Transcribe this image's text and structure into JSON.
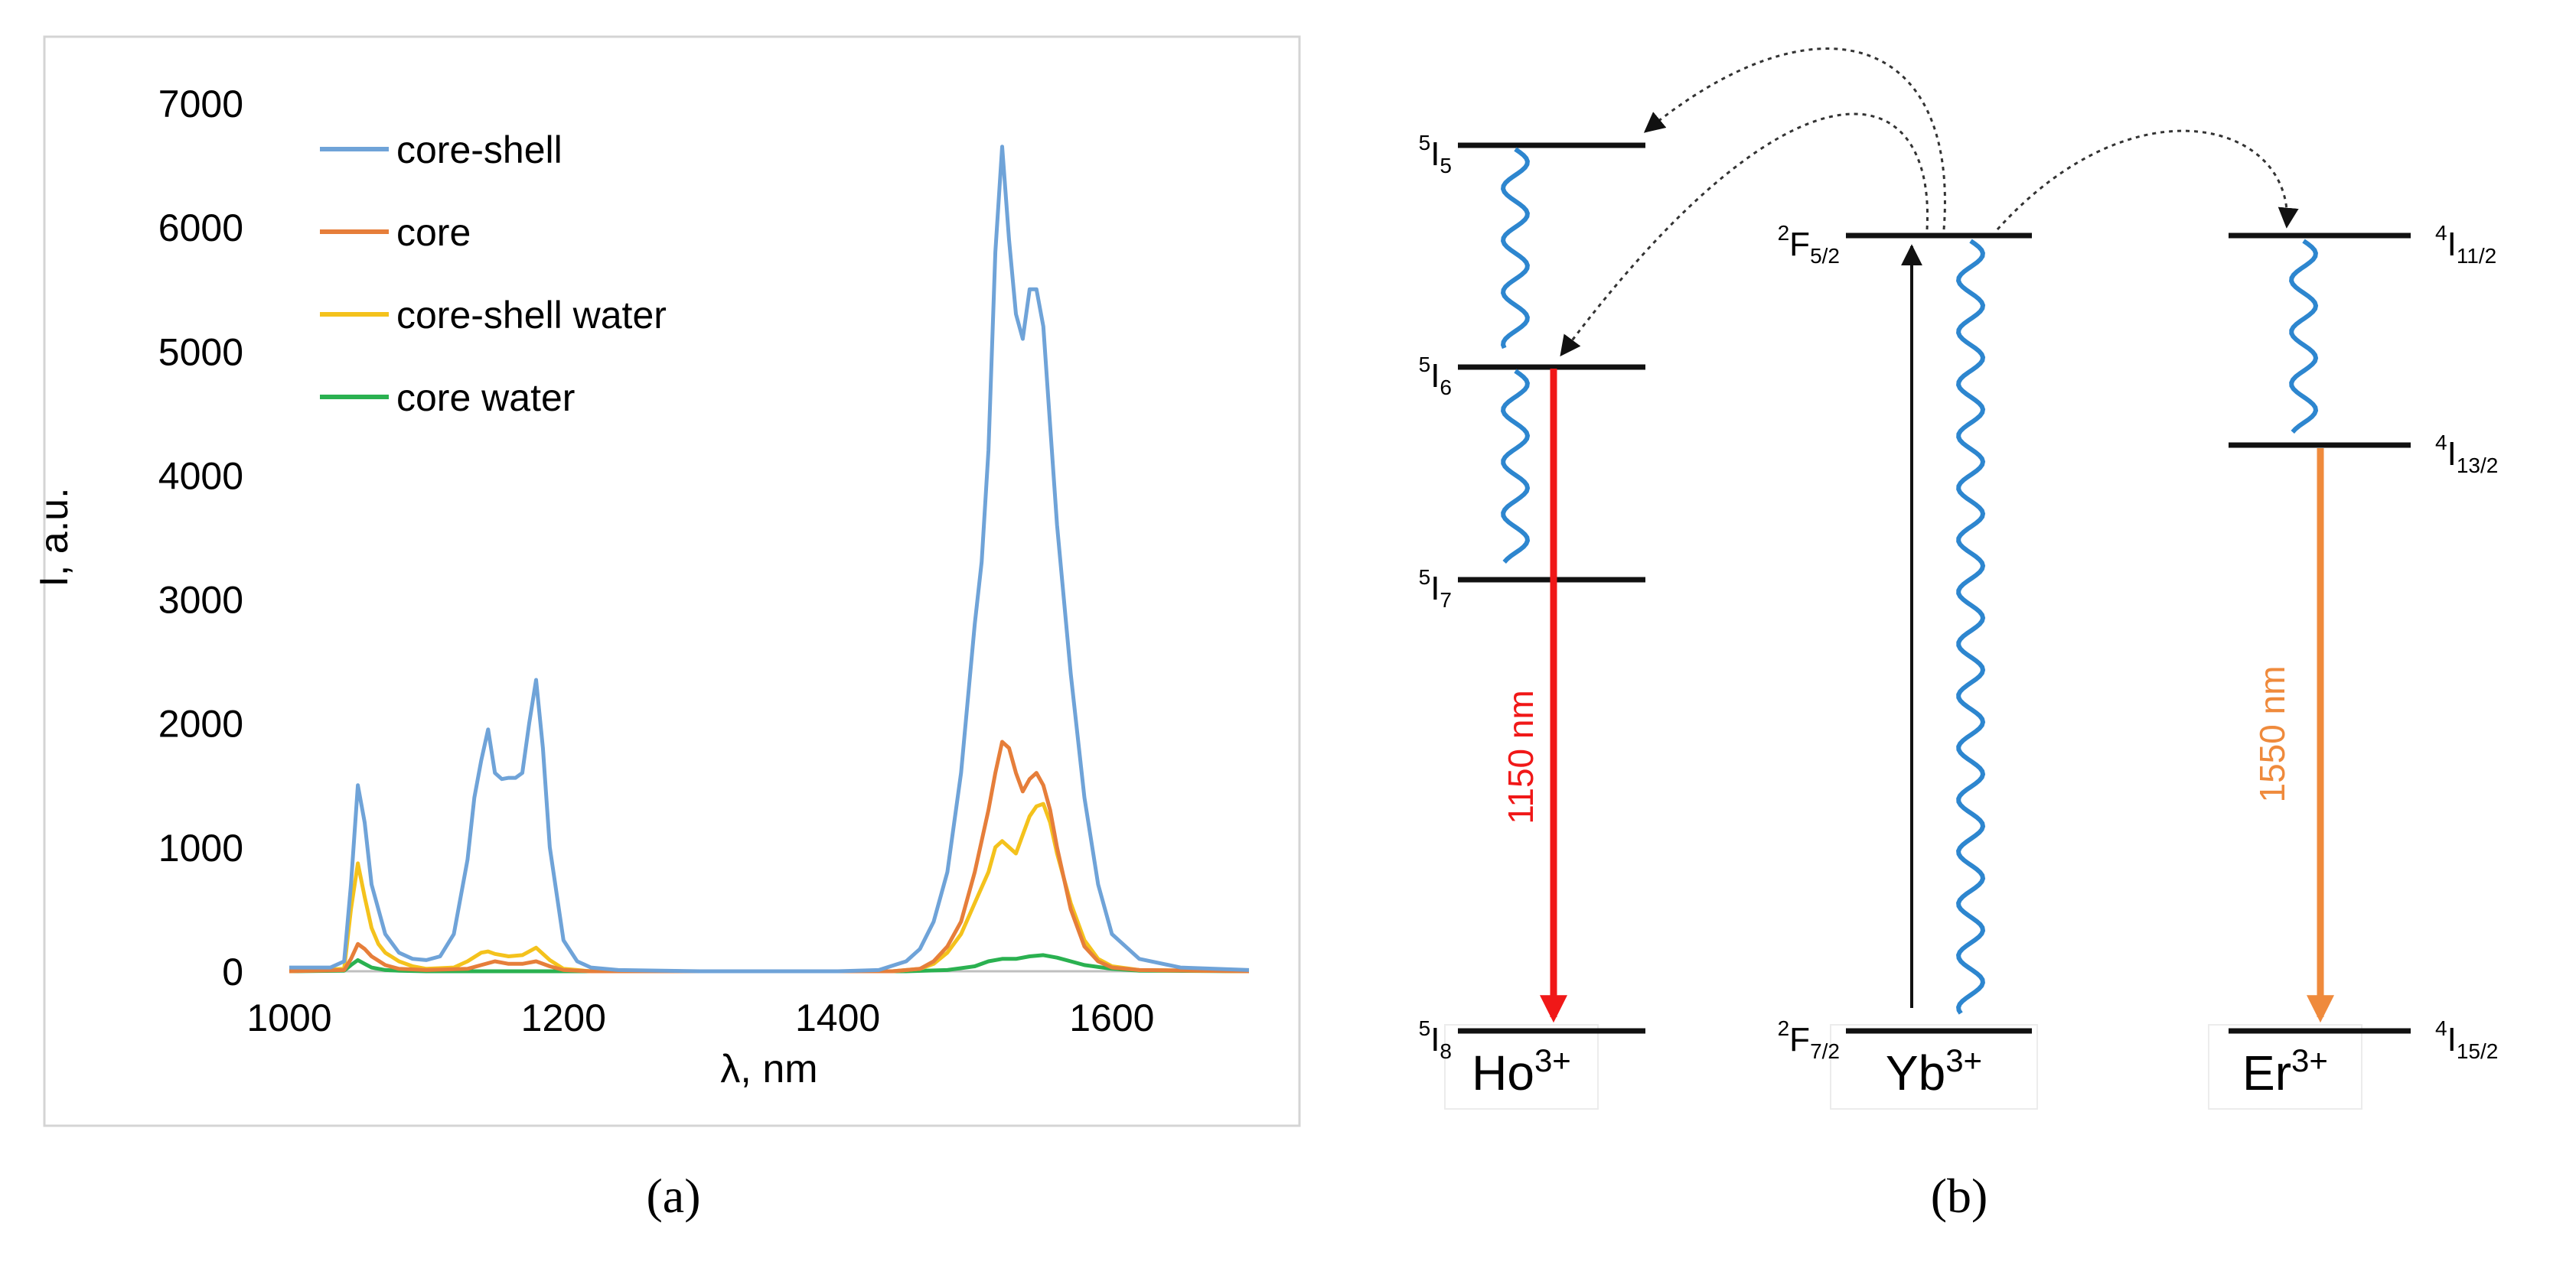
{
  "chart_data": {
    "type": "line",
    "xlabel": "λ, nm",
    "ylabel": "I, a.u.",
    "xlim": [
      1000,
      1700
    ],
    "ylim": [
      0,
      7000
    ],
    "xticks": [
      1000,
      1200,
      1400,
      1600
    ],
    "yticks": [
      0,
      1000,
      2000,
      3000,
      4000,
      5000,
      6000,
      7000
    ],
    "legend": "top-left",
    "grid": false,
    "series": [
      {
        "name": "core-shell",
        "color": "#6fa3d8",
        "x": [
          1000,
          1030,
          1040,
          1045,
          1050,
          1055,
          1060,
          1070,
          1080,
          1090,
          1100,
          1110,
          1120,
          1130,
          1135,
          1140,
          1145,
          1150,
          1155,
          1160,
          1165,
          1170,
          1175,
          1180,
          1185,
          1190,
          1200,
          1210,
          1220,
          1240,
          1300,
          1400,
          1430,
          1450,
          1460,
          1470,
          1480,
          1490,
          1500,
          1505,
          1510,
          1515,
          1520,
          1525,
          1530,
          1535,
          1540,
          1545,
          1550,
          1555,
          1560,
          1570,
          1580,
          1590,
          1600,
          1620,
          1650,
          1700
        ],
        "y": [
          30,
          30,
          80,
          700,
          1500,
          1200,
          700,
          300,
          150,
          100,
          90,
          120,
          300,
          900,
          1400,
          1700,
          1950,
          1600,
          1550,
          1560,
          1560,
          1600,
          2000,
          2350,
          1800,
          1000,
          250,
          80,
          30,
          10,
          0,
          0,
          10,
          80,
          180,
          400,
          800,
          1600,
          2800,
          3300,
          4200,
          5800,
          6650,
          5900,
          5300,
          5100,
          5500,
          5500,
          5200,
          4400,
          3600,
          2400,
          1400,
          700,
          300,
          100,
          30,
          10
        ]
      },
      {
        "name": "core",
        "color": "#e67e3a",
        "x": [
          1000,
          1040,
          1045,
          1050,
          1055,
          1060,
          1070,
          1080,
          1100,
          1130,
          1140,
          1150,
          1160,
          1170,
          1180,
          1190,
          1200,
          1220,
          1300,
          1440,
          1460,
          1470,
          1480,
          1490,
          1500,
          1510,
          1515,
          1520,
          1525,
          1530,
          1535,
          1540,
          1545,
          1550,
          1555,
          1560,
          1570,
          1580,
          1590,
          1600,
          1620,
          1700
        ],
        "y": [
          0,
          10,
          100,
          220,
          180,
          120,
          50,
          20,
          10,
          20,
          50,
          80,
          60,
          60,
          80,
          40,
          10,
          0,
          0,
          0,
          20,
          80,
          200,
          400,
          800,
          1300,
          1600,
          1850,
          1800,
          1600,
          1450,
          1550,
          1600,
          1500,
          1300,
          1000,
          500,
          200,
          80,
          30,
          10,
          0
        ]
      },
      {
        "name": "core-shell water",
        "color": "#f4c21c",
        "x": [
          1000,
          1040,
          1045,
          1050,
          1055,
          1060,
          1065,
          1070,
          1080,
          1090,
          1100,
          1120,
          1130,
          1140,
          1145,
          1150,
          1160,
          1170,
          1180,
          1190,
          1200,
          1220,
          1300,
          1440,
          1460,
          1470,
          1480,
          1490,
          1500,
          1510,
          1515,
          1520,
          1525,
          1530,
          1535,
          1540,
          1545,
          1550,
          1555,
          1560,
          1570,
          1580,
          1590,
          1600,
          1620,
          1700
        ],
        "y": [
          0,
          20,
          500,
          870,
          600,
          350,
          220,
          150,
          80,
          40,
          20,
          30,
          80,
          150,
          160,
          140,
          120,
          130,
          190,
          90,
          20,
          0,
          0,
          0,
          20,
          60,
          150,
          300,
          550,
          800,
          1000,
          1050,
          1000,
          950,
          1100,
          1250,
          1330,
          1350,
          1200,
          950,
          550,
          250,
          100,
          40,
          10,
          0
        ]
      },
      {
        "name": "core water",
        "color": "#2ab150",
        "x": [
          1000,
          1040,
          1045,
          1050,
          1055,
          1060,
          1070,
          1080,
          1100,
          1200,
          1450,
          1480,
          1500,
          1510,
          1520,
          1530,
          1540,
          1550,
          1560,
          1570,
          1580,
          1600,
          1620,
          1700
        ],
        "y": [
          0,
          5,
          50,
          90,
          60,
          30,
          10,
          5,
          0,
          0,
          0,
          10,
          40,
          80,
          100,
          100,
          120,
          130,
          110,
          80,
          50,
          20,
          5,
          0
        ]
      }
    ],
    "xtick_labels": [
      "1000",
      "1200",
      "1400",
      "1600"
    ],
    "ytick_labels": [
      "0",
      "1000",
      "2000",
      "3000",
      "4000",
      "5000",
      "6000",
      "7000"
    ]
  },
  "panel_a_caption": "(a)",
  "panel_b_caption": "(b)",
  "diagram": {
    "ions": [
      {
        "base": "Ho",
        "charge": "3+"
      },
      {
        "base": "Yb",
        "charge": "3+"
      },
      {
        "base": "Er",
        "charge": "3+"
      }
    ],
    "levels": {
      "ho": [
        {
          "sup": "5",
          "base": "I",
          "sub": "5"
        },
        {
          "sup": "5",
          "base": "I",
          "sub": "6"
        },
        {
          "sup": "5",
          "base": "I",
          "sub": "7"
        },
        {
          "sup": "5",
          "base": "I",
          "sub": "8"
        }
      ],
      "yb": [
        {
          "sup": "2",
          "base": "F",
          "sub": "5/2"
        },
        {
          "sup": "2",
          "base": "F",
          "sub": "7/2"
        }
      ],
      "er": [
        {
          "sup": "4",
          "base": "I",
          "sub": "11/2"
        },
        {
          "sup": "4",
          "base": "I",
          "sub": "13/2"
        },
        {
          "sup": "4",
          "base": "I",
          "sub": "15/2"
        }
      ]
    },
    "emission_ho": "1150 nm",
    "emission_er": "1550 nm",
    "colors": {
      "ho_emission": "#f01818",
      "er_emission": "#ef8a3c",
      "relaxation": "#2d86cf",
      "level": "#111111",
      "transfer": "#333333"
    }
  }
}
